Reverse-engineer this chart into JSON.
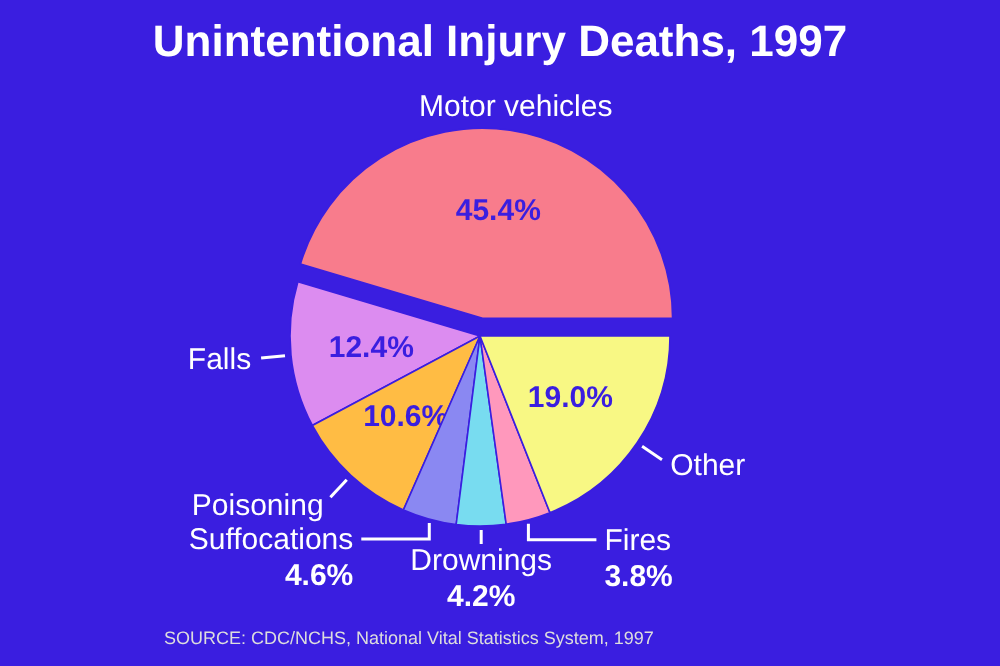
{
  "chart_data": {
    "type": "pie",
    "title": "Unintentional Injury Deaths, 1997",
    "categories": [
      "Motor vehicles",
      "Falls",
      "Poisoning",
      "Suffocations",
      "Drownings",
      "Fires",
      "Other"
    ],
    "values": [
      45.4,
      12.4,
      10.6,
      4.6,
      4.2,
      3.8,
      19.0
    ],
    "value_labels": [
      "45.4%",
      "12.4%",
      "10.6%",
      "4.6%",
      "4.2%",
      "3.8%",
      "19.0%"
    ],
    "colors": [
      "#f87c8c",
      "#dc8cf0",
      "#ffbc44",
      "#8a88f2",
      "#78dcf0",
      "#ff98bc",
      "#f8f884"
    ],
    "annotations": [
      "SOURCE: CDC/NCHS, National Vital Statistics System, 1997"
    ]
  }
}
